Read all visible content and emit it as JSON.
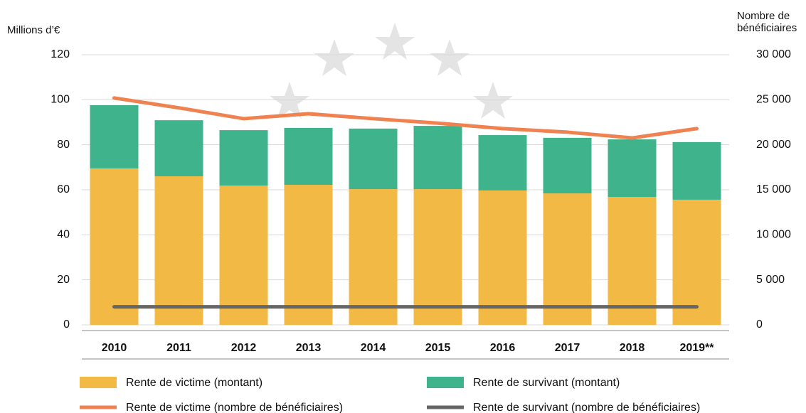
{
  "chart_data": {
    "type": "bar",
    "y_label": "Millions d’€",
    "y2_label": "Nombre de bénéficiaires",
    "categories": [
      "2010",
      "2011",
      "2012",
      "2013",
      "2014",
      "2015",
      "2016",
      "2017",
      "2018",
      "2019**"
    ],
    "stacked": true,
    "grid": true,
    "ylim": [
      0,
      120
    ],
    "yticks": [
      0,
      20,
      40,
      60,
      80,
      100,
      120
    ],
    "y2lim": [
      0,
      30000
    ],
    "y2ticks": [
      {
        "value": 0,
        "label": "0"
      },
      {
        "value": 5000,
        "label": "5 000"
      },
      {
        "value": 10000,
        "label": "10 000"
      },
      {
        "value": 15000,
        "label": "15 000"
      },
      {
        "value": 20000,
        "label": "20 000"
      },
      {
        "value": 25000,
        "label": "25 000"
      },
      {
        "value": 30000,
        "label": "30 000"
      }
    ],
    "series": [
      {
        "name": "Rente de victime (montant)",
        "type": "bar",
        "color": "#f2b944",
        "values": [
          69.5,
          66.0,
          61.9,
          62.2,
          60.3,
          60.3,
          59.7,
          58.4,
          56.8,
          55.6
        ]
      },
      {
        "name": "Rente de survivant (montant)",
        "type": "bar",
        "color": "#3fb38c",
        "values": [
          28.1,
          24.9,
          24.6,
          25.3,
          26.9,
          28.1,
          24.6,
          24.7,
          25.6,
          25.6
        ]
      },
      {
        "name": "Rente de victime (nombre de bénéficiaires)",
        "type": "line",
        "axis": "y2",
        "color": "#ef8250",
        "values": [
          25200,
          24100,
          22900,
          23450,
          22900,
          22400,
          21800,
          21400,
          20760,
          21800
        ]
      },
      {
        "name": "Rente de survivant (nombre de bénéficiaires)",
        "type": "line",
        "axis": "y2",
        "color": "#666666",
        "values": [
          2000,
          2000,
          2000,
          2000,
          2000,
          2000,
          2000,
          2000,
          2000,
          2000
        ]
      }
    ]
  }
}
